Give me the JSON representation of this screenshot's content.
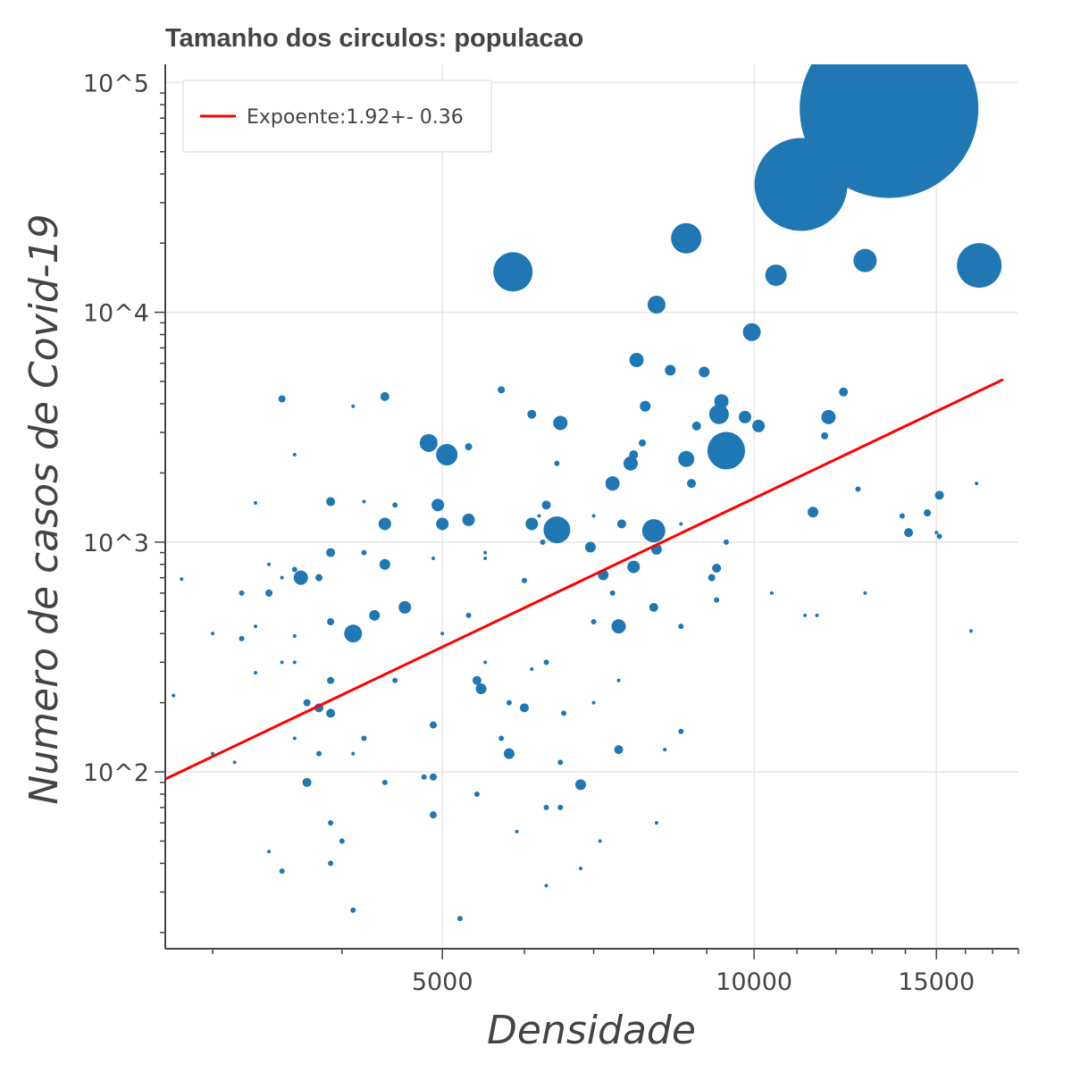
{
  "chart_data": {
    "type": "scatter",
    "title": "Tamanho dos circulos: populacao",
    "xlabel": "Densidade",
    "ylabel": "Numero de casos de Covid-19",
    "x_scale": "log",
    "y_scale": "log",
    "xlim": [
      2700,
      18000
    ],
    "ylim": [
      17,
      120000
    ],
    "x_ticks": [
      {
        "value": 5000,
        "label": "5000"
      },
      {
        "value": 10000,
        "label": "10000"
      },
      {
        "value": 15000,
        "label": "15000"
      }
    ],
    "y_ticks": [
      {
        "value": 100,
        "label": "10^2"
      },
      {
        "value": 1000,
        "label": "10^3"
      },
      {
        "value": 10000,
        "label": "10^4"
      },
      {
        "value": 100000,
        "label": "10^5"
      }
    ],
    "grid": true,
    "legend": {
      "position": "top-left",
      "entries": [
        {
          "label": "Expoente:1.92+- 0.36",
          "color": "#ff0000"
        }
      ]
    },
    "fit_line": {
      "color": "#ff0000",
      "points": [
        [
          2700,
          93
        ],
        [
          17400,
          5100
        ]
      ]
    },
    "series": [
      {
        "color": "#1f77b4",
        "marker": "circle",
        "size_meaning": "populacao",
        "points": [
          [
            13500,
            77000,
            100
          ],
          [
            11100,
            36000,
            52
          ],
          [
            8600,
            21000,
            17
          ],
          [
            5850,
            15000,
            22
          ],
          [
            10500,
            14500,
            12
          ],
          [
            12800,
            16800,
            13
          ],
          [
            16500,
            16000,
            25
          ],
          [
            8050,
            10800,
            10
          ],
          [
            9950,
            8200,
            10
          ],
          [
            7700,
            6200,
            8
          ],
          [
            8300,
            5600,
            6
          ],
          [
            8950,
            5500,
            6
          ],
          [
            12200,
            4500,
            5
          ],
          [
            3500,
            4200,
            4
          ],
          [
            4400,
            4300,
            5
          ],
          [
            5700,
            4600,
            4
          ],
          [
            4100,
            3900,
            2
          ],
          [
            6100,
            3600,
            5
          ],
          [
            6500,
            3300,
            8
          ],
          [
            7850,
            3900,
            6
          ],
          [
            9300,
            4100,
            8
          ],
          [
            9250,
            3600,
            11
          ],
          [
            9800,
            3500,
            7
          ],
          [
            10100,
            3200,
            7
          ],
          [
            11800,
            3500,
            8
          ],
          [
            8800,
            3200,
            5
          ],
          [
            11700,
            2900,
            4
          ],
          [
            5300,
            2600,
            4
          ],
          [
            7800,
            2700,
            4
          ],
          [
            4850,
            2700,
            10
          ],
          [
            5050,
            2400,
            12
          ],
          [
            7650,
            2400,
            5
          ],
          [
            7600,
            2200,
            8
          ],
          [
            8600,
            2300,
            9
          ],
          [
            9400,
            2500,
            21
          ],
          [
            6450,
            2200,
            3
          ],
          [
            7300,
            1800,
            8
          ],
          [
            8700,
            1800,
            5
          ],
          [
            3600,
            2400,
            2
          ],
          [
            12600,
            1700,
            3
          ],
          [
            13900,
            1300,
            3
          ],
          [
            14100,
            1100,
            5
          ],
          [
            14700,
            1340,
            4
          ],
          [
            15100,
            1600,
            5
          ],
          [
            15100,
            1060,
            3
          ],
          [
            11400,
            1350,
            6
          ],
          [
            3900,
            1500,
            5
          ],
          [
            4200,
            1500,
            2
          ],
          [
            4950,
            1450,
            7
          ],
          [
            6300,
            1450,
            5
          ],
          [
            3300,
            1480,
            2
          ],
          [
            4500,
            1450,
            3
          ],
          [
            6200,
            1300,
            2
          ],
          [
            6450,
            1130,
            15
          ],
          [
            8000,
            1120,
            13
          ],
          [
            6100,
            1200,
            7
          ],
          [
            5300,
            1250,
            7
          ],
          [
            5000,
            1200,
            7
          ],
          [
            4400,
            1200,
            7
          ],
          [
            7000,
            1300,
            2
          ],
          [
            7450,
            1200,
            5
          ],
          [
            8500,
            1200,
            2
          ],
          [
            6250,
            1000,
            3
          ],
          [
            6950,
            950,
            6
          ],
          [
            8050,
            930,
            6
          ],
          [
            9400,
            1000,
            3
          ],
          [
            3900,
            900,
            5
          ],
          [
            4200,
            900,
            3
          ],
          [
            4900,
            850,
            2
          ],
          [
            5500,
            850,
            2
          ],
          [
            5500,
            900,
            2
          ],
          [
            4400,
            800,
            6
          ],
          [
            3600,
            760,
            3
          ],
          [
            3650,
            700,
            8
          ],
          [
            3800,
            700,
            4
          ],
          [
            7650,
            780,
            7
          ],
          [
            7150,
            720,
            6
          ],
          [
            9100,
            700,
            4
          ],
          [
            9200,
            770,
            5
          ],
          [
            3200,
            600,
            3
          ],
          [
            3400,
            600,
            4
          ],
          [
            4600,
            520,
            7
          ],
          [
            4300,
            480,
            6
          ],
          [
            5300,
            480,
            3
          ],
          [
            6000,
            680,
            3
          ],
          [
            7300,
            600,
            3
          ],
          [
            8000,
            520,
            5
          ],
          [
            9200,
            560,
            3
          ],
          [
            10400,
            600,
            2
          ],
          [
            12800,
            600,
            2
          ],
          [
            11200,
            480,
            2
          ],
          [
            11500,
            480,
            2
          ],
          [
            7400,
            430,
            8
          ],
          [
            7000,
            450,
            3
          ],
          [
            8500,
            430,
            3
          ],
          [
            4100,
            400,
            10
          ],
          [
            3900,
            450,
            4
          ],
          [
            3000,
            400,
            2
          ],
          [
            5000,
            400,
            2
          ],
          [
            5500,
            300,
            2
          ],
          [
            6300,
            300,
            3
          ],
          [
            6100,
            280,
            2
          ],
          [
            3600,
            300,
            2
          ],
          [
            3300,
            270,
            2
          ],
          [
            3900,
            250,
            4
          ],
          [
            4500,
            250,
            3
          ],
          [
            5400,
            250,
            5
          ],
          [
            5450,
            230,
            6
          ],
          [
            5800,
            200,
            3
          ],
          [
            6000,
            190,
            5
          ],
          [
            6550,
            180,
            3
          ],
          [
            7400,
            250,
            2
          ],
          [
            7000,
            200,
            2
          ],
          [
            3700,
            200,
            4
          ],
          [
            3800,
            190,
            5
          ],
          [
            3900,
            180,
            5
          ],
          [
            4900,
            160,
            4
          ],
          [
            5700,
            140,
            3
          ],
          [
            5800,
            120,
            6
          ],
          [
            6500,
            110,
            3
          ],
          [
            6800,
            88,
            6
          ],
          [
            7400,
            125,
            5
          ],
          [
            8200,
            125,
            2
          ],
          [
            8500,
            150,
            3
          ],
          [
            3700,
            90,
            5
          ],
          [
            4400,
            90,
            3
          ],
          [
            4800,
            95,
            3
          ],
          [
            4900,
            95,
            4
          ],
          [
            5400,
            80,
            3
          ],
          [
            6300,
            70,
            3
          ],
          [
            6500,
            70,
            3
          ],
          [
            3600,
            140,
            2
          ],
          [
            4200,
            140,
            3
          ],
          [
            4100,
            120,
            2
          ],
          [
            3800,
            120,
            3
          ],
          [
            3900,
            60,
            3
          ],
          [
            4000,
            50,
            3
          ],
          [
            3900,
            40,
            3
          ],
          [
            3500,
            37,
            3
          ],
          [
            3400,
            45,
            2
          ],
          [
            4100,
            25,
            3
          ],
          [
            4900,
            65,
            4
          ],
          [
            5200,
            23,
            3
          ],
          [
            5900,
            55,
            2
          ],
          [
            6300,
            32,
            2
          ],
          [
            6800,
            38,
            2
          ],
          [
            7100,
            50,
            2
          ],
          [
            8050,
            60,
            2
          ],
          [
            2800,
            690,
            2
          ],
          [
            2750,
            215,
            2
          ],
          [
            3000,
            120,
            2
          ],
          [
            3150,
            110,
            2
          ],
          [
            3300,
            430,
            2
          ],
          [
            3500,
            700,
            2
          ],
          [
            3400,
            800,
            2
          ],
          [
            3600,
            390,
            2
          ],
          [
            3200,
            380,
            3
          ],
          [
            3500,
            300,
            2
          ],
          [
            16200,
            410,
            2
          ],
          [
            16400,
            1800,
            2
          ],
          [
            15000,
            1100,
            2
          ]
        ]
      }
    ]
  }
}
